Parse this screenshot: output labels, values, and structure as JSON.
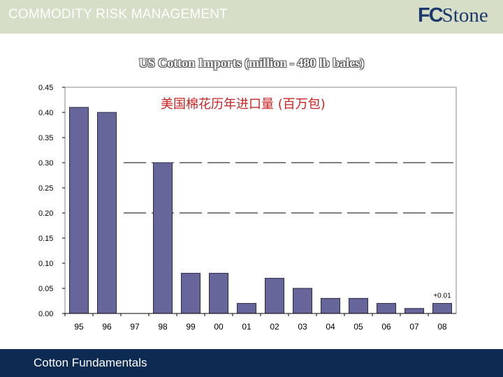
{
  "header": {
    "title": "COMMODITY RISK MANAGEMENT",
    "logo_text_bold": "FC",
    "logo_text": "Stone"
  },
  "footer": {
    "label": "Cotton Fundamentals"
  },
  "colors": {
    "bar": "#66669a",
    "bar_stroke": "#2a2a4a",
    "header_bg": "#d6dec7",
    "footer_bg": "#0d2a52",
    "subtitle": "#cc2222"
  },
  "chart_data": {
    "type": "bar",
    "title": "US Cotton Imports (million - 480 lb bales)",
    "subtitle": "美国棉花历年进口量 (百万包)",
    "xlabel": "",
    "ylabel": "",
    "categories": [
      "95",
      "96",
      "97",
      "98",
      "99",
      "00",
      "01",
      "02",
      "03",
      "04",
      "05",
      "06",
      "07",
      "08"
    ],
    "values": [
      0.41,
      0.4,
      0.0,
      0.3,
      0.08,
      0.08,
      0.02,
      0.07,
      0.05,
      0.03,
      0.03,
      0.02,
      0.01,
      0.02
    ],
    "ylim": [
      0,
      0.45
    ],
    "yticks": [
      "0.00",
      "0.05",
      "0.10",
      "0.15",
      "0.20",
      "0.25",
      "0.30",
      "0.35",
      "0.40",
      "0.45"
    ],
    "annotations": [
      {
        "category": "08",
        "text": "+0.01"
      }
    ],
    "grid": false,
    "reference_dashes": [
      0.3,
      0.2
    ]
  }
}
